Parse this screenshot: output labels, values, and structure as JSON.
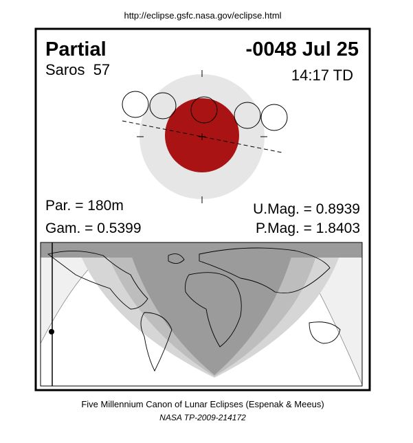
{
  "header": {
    "url": "http://eclipse.gsfc.nasa.gov/eclipse.html"
  },
  "eclipse": {
    "type": "Partial",
    "date": "-0048 Jul 25",
    "saros": "Saros  57",
    "time": "14:17 TD",
    "par": "Par. = 180m",
    "gam": "Gam. = 0.5399",
    "umag": "U.Mag. = 0.8939",
    "pmag": "P.Mag. = 1.8403"
  },
  "footer": {
    "line1": "Five Millennium Canon of Lunar Eclipses (Espenak & Meeus)",
    "line2": "NASA TP-2009-214172"
  }
}
